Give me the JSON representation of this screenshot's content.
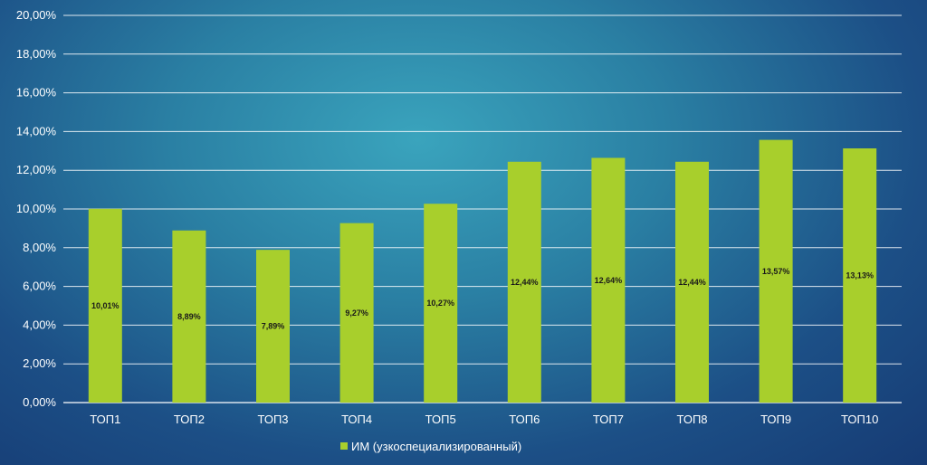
{
  "chart_data": {
    "type": "bar",
    "categories": [
      "ТОП1",
      "ТОП2",
      "ТОП3",
      "ТОП4",
      "ТОП5",
      "ТОП6",
      "ТОП7",
      "ТОП8",
      "ТОП9",
      "ТОП10"
    ],
    "series": [
      {
        "name": "ИМ (узкоспециализированный)",
        "values": [
          10.01,
          8.89,
          7.89,
          9.27,
          10.27,
          12.44,
          12.64,
          12.44,
          13.57,
          13.13
        ],
        "labels": [
          "10,01%",
          "8,89%",
          "7,89%",
          "9,27%",
          "10,27%",
          "12,44%",
          "12,64%",
          "12,44%",
          "13,57%",
          "13,13%"
        ],
        "color": "#a8cf2c"
      }
    ],
    "yticks": [
      "0,00%",
      "2,00%",
      "4,00%",
      "6,00%",
      "8,00%",
      "10,00%",
      "12,00%",
      "14,00%",
      "16,00%",
      "18,00%",
      "20,00%"
    ],
    "ylim": [
      0,
      20
    ],
    "grid": true,
    "legend": "bottom",
    "title": "",
    "xlabel": "",
    "ylabel": ""
  }
}
